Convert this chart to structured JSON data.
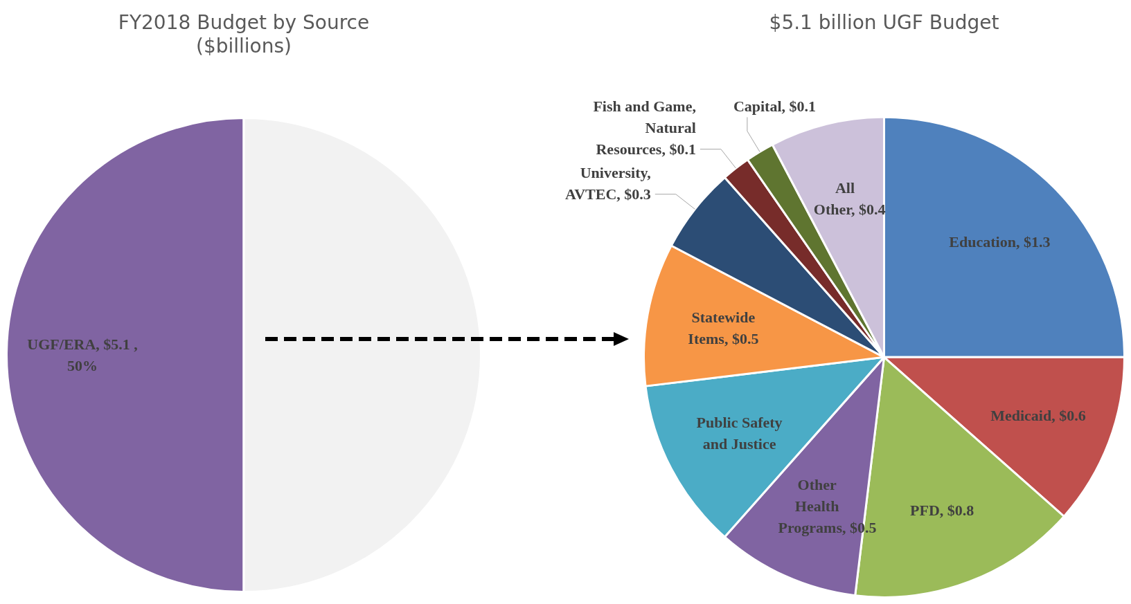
{
  "chart_data": [
    {
      "type": "pie",
      "title": [
        "FY2018 Budget by Source",
        "($billions)"
      ],
      "categories": [
        "UGF/ERA",
        null
      ],
      "values": [
        50,
        50
      ],
      "colors": [
        "#8064a2",
        "#f2f2f2"
      ],
      "value_labels": [
        "$5.1 , 50%",
        null
      ]
    },
    {
      "type": "pie",
      "title": "$5.1 billion UGF Budget",
      "categories": [
        "Education",
        "Medicaid",
        "PFD",
        "Other Health Programs",
        "Public Safety and Justice",
        "Statewide Items",
        "University, AVTEC",
        "Fish and Game, Natural Resources",
        "Capital",
        "All Other"
      ],
      "values": [
        1.3,
        0.6,
        0.8,
        0.5,
        0.6,
        0.5,
        0.3,
        0.1,
        0.1,
        0.4
      ],
      "colors": [
        "#4f81bd",
        "#c0504d",
        "#9bbb59",
        "#8064a2",
        "#4bacc6",
        "#f79646",
        "#2c4d75",
        "#772c2a",
        "#5f7530",
        "#ccc1da"
      ],
      "value_labels": [
        "$1.3",
        "$0.6",
        "$0.8",
        "$0.5",
        null,
        "$0.5",
        "$0.3",
        "$0.1",
        "$0.1",
        "$0.4"
      ]
    }
  ]
}
